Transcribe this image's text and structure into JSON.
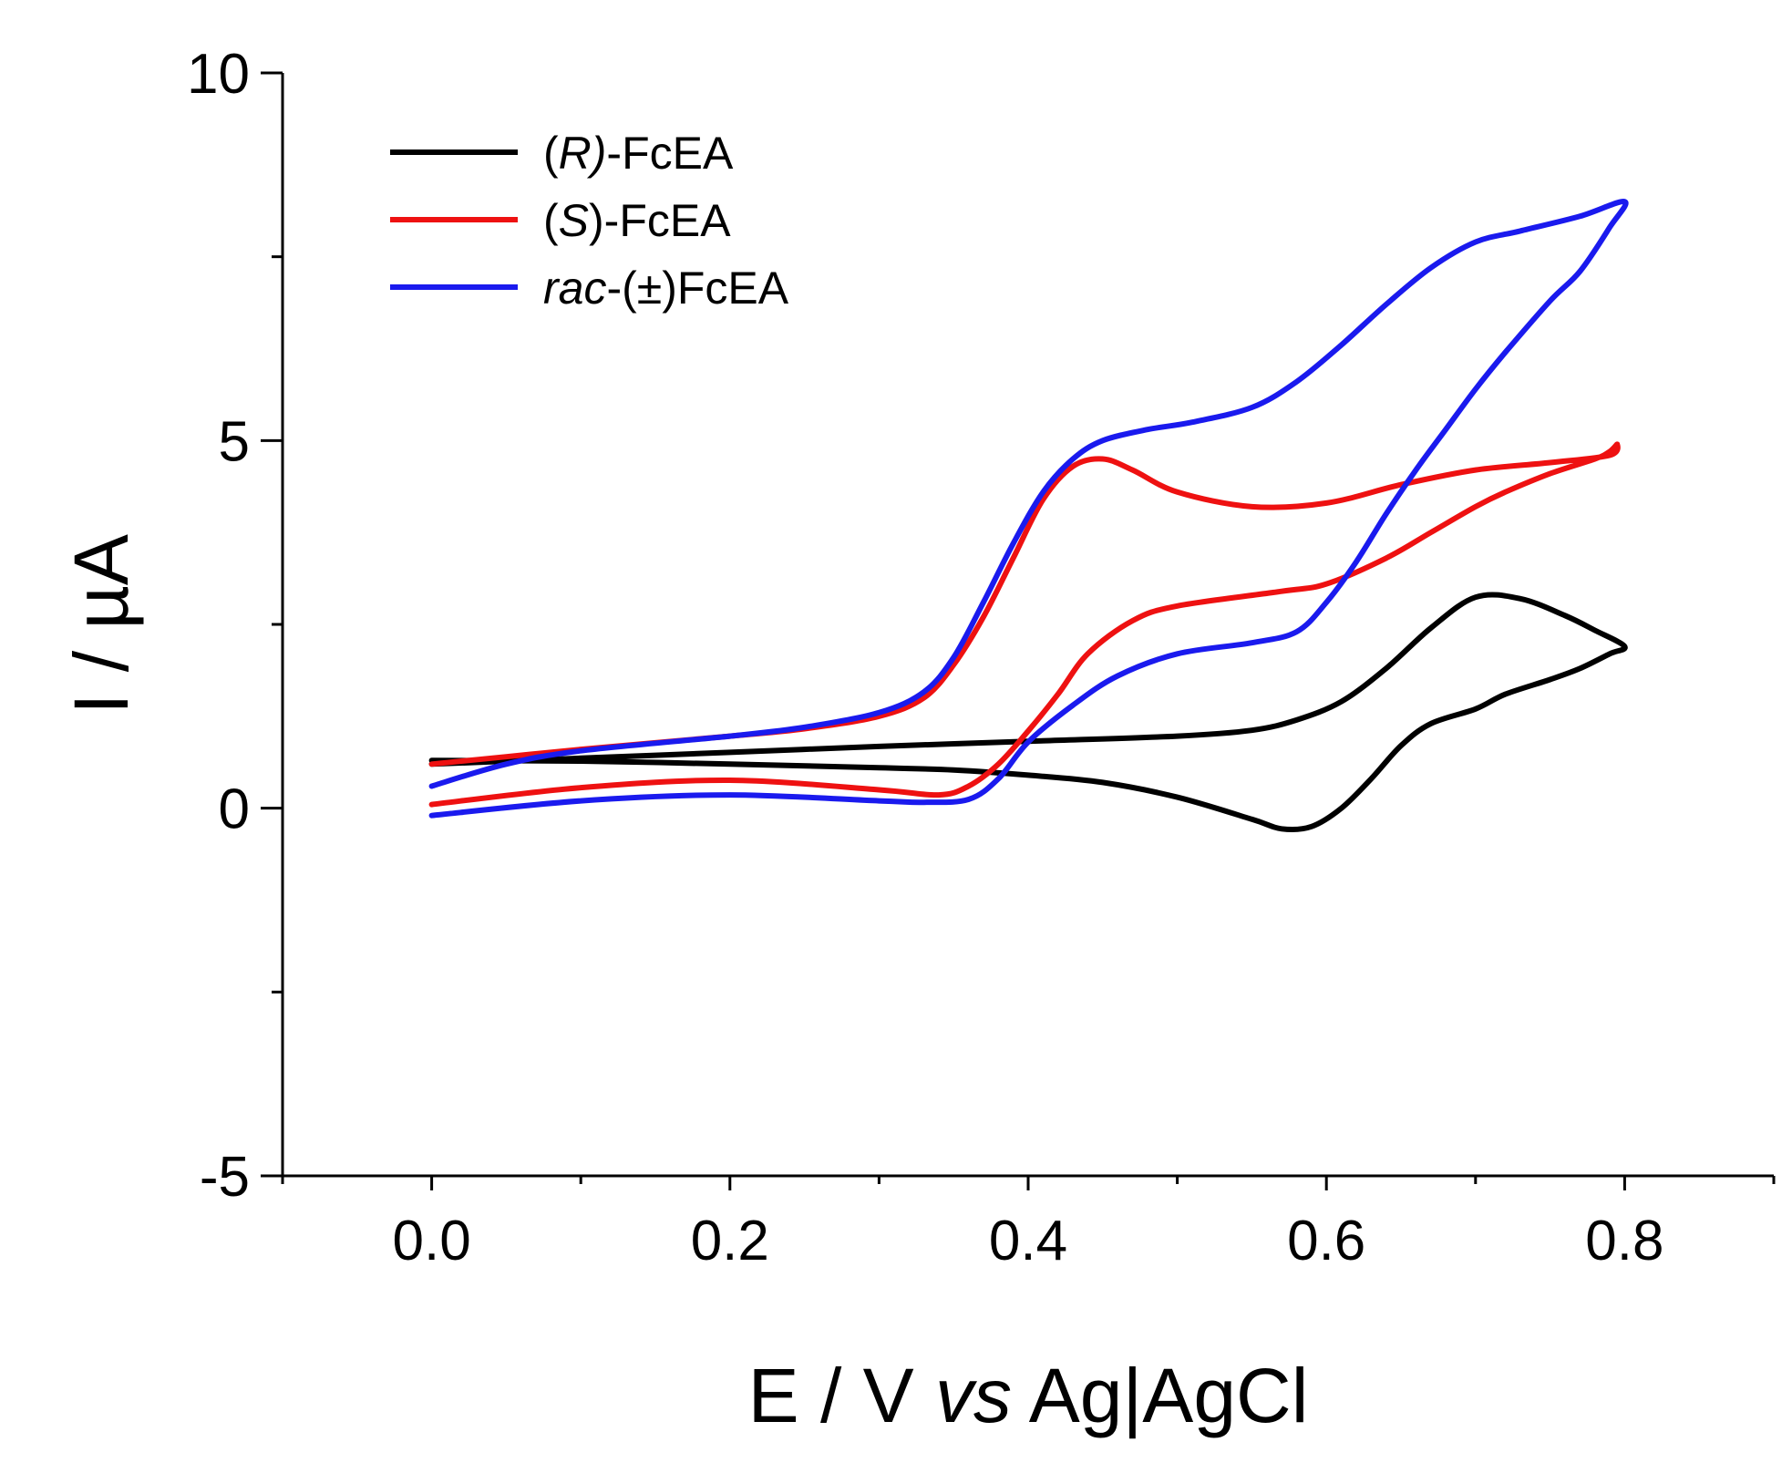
{
  "chart_data": {
    "type": "line",
    "title": "",
    "xlabel": {
      "pre": "E / V ",
      "italic": "vs",
      "post": " Ag|AgCl"
    },
    "ylabel": "I / µA",
    "xlim": [
      -0.1,
      0.9
    ],
    "ylim": [
      -5,
      10
    ],
    "x_major_ticks": [
      0.0,
      0.2,
      0.4,
      0.6,
      0.8
    ],
    "x_tick_labels": [
      "0.0",
      "0.2",
      "0.4",
      "0.6",
      "0.8"
    ],
    "x_minor_ticks": [
      -0.1,
      0.1,
      0.3,
      0.5,
      0.7,
      0.9
    ],
    "y_major_ticks": [
      -5,
      0,
      5,
      10
    ],
    "y_tick_labels": [
      "-5",
      "0",
      "5",
      "10"
    ],
    "y_minor_ticks": [
      -2.5,
      2.5,
      7.5
    ],
    "grid": false,
    "legend_position": "top-left",
    "series": [
      {
        "name": "(R)-FcEA",
        "label_parts": [
          {
            "t": "(",
            "i": false
          },
          {
            "t": "R)",
            "i": true
          },
          {
            "t": "-FcEA",
            "i": false
          }
        ],
        "color": "#000000",
        "points": [
          [
            0.0,
            0.6
          ],
          [
            0.1,
            0.68
          ],
          [
            0.2,
            0.76
          ],
          [
            0.3,
            0.84
          ],
          [
            0.4,
            0.91
          ],
          [
            0.5,
            0.98
          ],
          [
            0.55,
            1.06
          ],
          [
            0.58,
            1.2
          ],
          [
            0.61,
            1.45
          ],
          [
            0.64,
            1.9
          ],
          [
            0.67,
            2.45
          ],
          [
            0.7,
            2.87
          ],
          [
            0.73,
            2.85
          ],
          [
            0.76,
            2.62
          ],
          [
            0.78,
            2.42
          ],
          [
            0.8,
            2.2
          ],
          [
            0.79,
            2.1
          ],
          [
            0.77,
            1.9
          ],
          [
            0.75,
            1.75
          ],
          [
            0.72,
            1.55
          ],
          [
            0.7,
            1.35
          ],
          [
            0.67,
            1.15
          ],
          [
            0.65,
            0.85
          ],
          [
            0.63,
            0.4
          ],
          [
            0.61,
            0.0
          ],
          [
            0.59,
            -0.25
          ],
          [
            0.57,
            -0.28
          ],
          [
            0.55,
            -0.15
          ],
          [
            0.5,
            0.15
          ],
          [
            0.45,
            0.35
          ],
          [
            0.4,
            0.45
          ],
          [
            0.35,
            0.52
          ],
          [
            0.3,
            0.55
          ],
          [
            0.2,
            0.6
          ],
          [
            0.1,
            0.64
          ],
          [
            0.0,
            0.65
          ]
        ]
      },
      {
        "name": "(S)-FcEA",
        "label_parts": [
          {
            "t": "(",
            "i": false
          },
          {
            "t": "S",
            "i": true
          },
          {
            "t": ")-FcEA",
            "i": false
          }
        ],
        "color": "#ee1111",
        "points": [
          [
            0.0,
            0.6
          ],
          [
            0.05,
            0.7
          ],
          [
            0.1,
            0.8
          ],
          [
            0.2,
            0.98
          ],
          [
            0.25,
            1.08
          ],
          [
            0.3,
            1.25
          ],
          [
            0.33,
            1.5
          ],
          [
            0.35,
            1.95
          ],
          [
            0.37,
            2.6
          ],
          [
            0.39,
            3.4
          ],
          [
            0.41,
            4.2
          ],
          [
            0.43,
            4.65
          ],
          [
            0.45,
            4.75
          ],
          [
            0.47,
            4.6
          ],
          [
            0.5,
            4.3
          ],
          [
            0.55,
            4.1
          ],
          [
            0.6,
            4.15
          ],
          [
            0.65,
            4.4
          ],
          [
            0.7,
            4.6
          ],
          [
            0.75,
            4.7
          ],
          [
            0.79,
            4.8
          ],
          [
            0.795,
            4.95
          ],
          [
            0.79,
            4.85
          ],
          [
            0.78,
            4.75
          ],
          [
            0.75,
            4.55
          ],
          [
            0.72,
            4.3
          ],
          [
            0.7,
            4.1
          ],
          [
            0.67,
            3.75
          ],
          [
            0.64,
            3.4
          ],
          [
            0.6,
            3.05
          ],
          [
            0.57,
            2.95
          ],
          [
            0.5,
            2.75
          ],
          [
            0.47,
            2.55
          ],
          [
            0.44,
            2.1
          ],
          [
            0.42,
            1.55
          ],
          [
            0.4,
            1.05
          ],
          [
            0.38,
            0.6
          ],
          [
            0.36,
            0.3
          ],
          [
            0.34,
            0.18
          ],
          [
            0.3,
            0.25
          ],
          [
            0.2,
            0.38
          ],
          [
            0.1,
            0.28
          ],
          [
            0.0,
            0.05
          ]
        ]
      },
      {
        "name": "rac-(±)FcEA",
        "label_parts": [
          {
            "t": "rac",
            "i": true
          },
          {
            "t": "-(±)FcEA",
            "i": false
          }
        ],
        "color": "#1a1aee",
        "points": [
          [
            0.0,
            0.3
          ],
          [
            0.05,
            0.6
          ],
          [
            0.1,
            0.78
          ],
          [
            0.2,
            0.98
          ],
          [
            0.25,
            1.1
          ],
          [
            0.3,
            1.3
          ],
          [
            0.33,
            1.58
          ],
          [
            0.35,
            2.05
          ],
          [
            0.37,
            2.8
          ],
          [
            0.39,
            3.6
          ],
          [
            0.41,
            4.3
          ],
          [
            0.43,
            4.75
          ],
          [
            0.45,
            5.0
          ],
          [
            0.48,
            5.15
          ],
          [
            0.51,
            5.25
          ],
          [
            0.55,
            5.45
          ],
          [
            0.58,
            5.8
          ],
          [
            0.61,
            6.3
          ],
          [
            0.64,
            6.85
          ],
          [
            0.67,
            7.35
          ],
          [
            0.7,
            7.7
          ],
          [
            0.73,
            7.85
          ],
          [
            0.77,
            8.05
          ],
          [
            0.8,
            8.25
          ],
          [
            0.79,
            7.9
          ],
          [
            0.77,
            7.3
          ],
          [
            0.75,
            6.9
          ],
          [
            0.72,
            6.2
          ],
          [
            0.7,
            5.7
          ],
          [
            0.68,
            5.15
          ],
          [
            0.66,
            4.6
          ],
          [
            0.64,
            4.0
          ],
          [
            0.62,
            3.35
          ],
          [
            0.6,
            2.8
          ],
          [
            0.58,
            2.4
          ],
          [
            0.55,
            2.25
          ],
          [
            0.5,
            2.1
          ],
          [
            0.46,
            1.8
          ],
          [
            0.43,
            1.4
          ],
          [
            0.4,
            0.9
          ],
          [
            0.38,
            0.4
          ],
          [
            0.36,
            0.12
          ],
          [
            0.33,
            0.08
          ],
          [
            0.3,
            0.1
          ],
          [
            0.2,
            0.18
          ],
          [
            0.1,
            0.1
          ],
          [
            0.0,
            -0.1
          ]
        ]
      }
    ]
  }
}
